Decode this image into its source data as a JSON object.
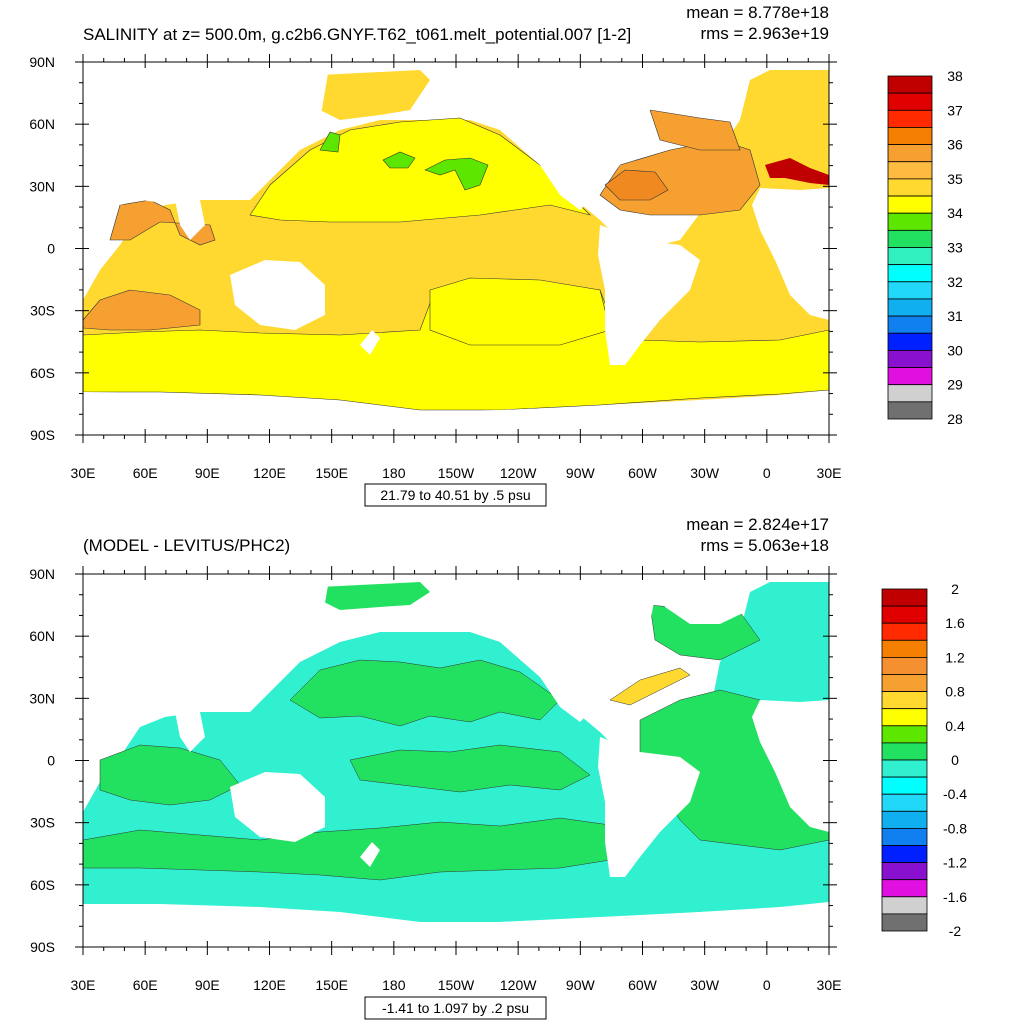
{
  "panels": [
    {
      "title": "SALINITY at z= 500.0m, g.c2b6.GNYF.T62_t061.melt_potential.007 [1-2]",
      "mean": "mean = 8.778e+18",
      "rms": "rms = 2.963e+19",
      "range_label": "21.79 to 40.51 by .5 psu",
      "colorbar_labels": [
        "38",
        "37",
        "36",
        "35",
        "34",
        "33",
        "32",
        "31",
        "30",
        "29",
        "28"
      ],
      "colorbar_colors": [
        "#c00000",
        "#e00000",
        "#ff2a00",
        "#f57f00",
        "#f5a030",
        "#ffba40",
        "#ffd830",
        "#ffff00",
        "#5ce600",
        "#22e060",
        "#30f0c0",
        "#00ffff",
        "#22d8f8",
        "#10b0f0",
        "#1080f0",
        "#0020ff",
        "#8a10d0",
        "#e010e0",
        "#d0d0d0",
        "#707070"
      ],
      "fill_colors": {
        "land": "#ffffff",
        "base": "#ffd830",
        "mid": "#ffff00",
        "warm": "#f5a030",
        "hot": "#f08a20",
        "green": "#5ce600",
        "red": "#c00000"
      }
    },
    {
      "title": "(MODEL - LEVITUS/PHC2)",
      "mean": "mean = 2.824e+17",
      "rms": "rms = 5.063e+18",
      "range_label": "-1.41 to 1.097 by .2 psu",
      "colorbar_labels": [
        "2",
        "1.6",
        "1.2",
        "0.8",
        "0.4",
        "0",
        "-0.4",
        "-0.8",
        "-1.2",
        "-1.6",
        "-2"
      ],
      "colorbar_colors": [
        "#c00000",
        "#e00000",
        "#ff2a00",
        "#f57f00",
        "#f59030",
        "#f5a030",
        "#ffd830",
        "#ffff00",
        "#5ce600",
        "#22e060",
        "#30f0d0",
        "#00ffff",
        "#22d8f8",
        "#10b0f0",
        "#1080f0",
        "#0020ff",
        "#8a10d0",
        "#e010e0",
        "#d0d0d0",
        "#707070"
      ],
      "fill_colors": {
        "land": "#ffffff",
        "base": "#30f0d0",
        "mid": "#22e060"
      }
    }
  ],
  "lon_labels": [
    "30E",
    "60E",
    "90E",
    "120E",
    "150E",
    "180",
    "150W",
    "120W",
    "90W",
    "60W",
    "30W",
    "0",
    "30E"
  ],
  "lat_labels": [
    "90N",
    "60N",
    "30N",
    "0",
    "30S",
    "60S",
    "90S"
  ]
}
